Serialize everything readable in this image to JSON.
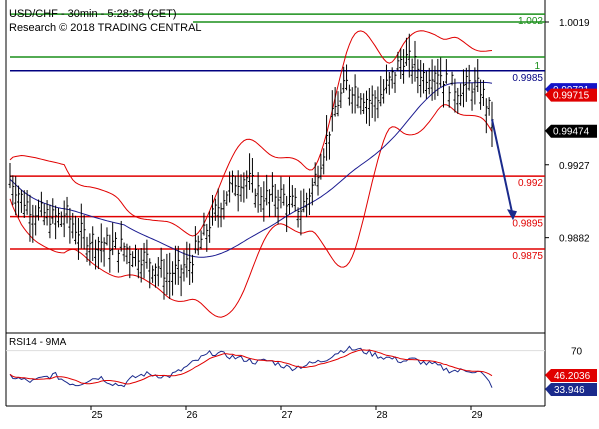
{
  "chart_data": [
    {
      "type": "line",
      "title": "USD/CHF - 30min - 5:28:35 (CET)",
      "subtitle": "Research © 2018 TRADING CENTRAL",
      "x_labels": [
        "25",
        "26",
        "27",
        "28",
        "29"
      ],
      "y_ticks": [
        "1.0019",
        "0.9927",
        "0.9882"
      ],
      "ylim": [
        0.9825,
        1.0025
      ],
      "levels": [
        {
          "value": 1.002,
          "label": "1.002",
          "color": "#1a8f1a"
        },
        {
          "value": 0.9985,
          "label": "0.9985",
          "color": "#000080"
        },
        {
          "value": 0.992,
          "label": "0.992",
          "color": "#e00000"
        },
        {
          "value": 0.9895,
          "label": "0.9895",
          "color": "#e00000"
        },
        {
          "value": 0.9875,
          "label": "0.9875",
          "color": "#e00000"
        }
      ],
      "extra_level_text": "1",
      "price_tags": [
        {
          "value": 0.99731,
          "label": "0.99731",
          "bg": "#1414c8",
          "fg": "#ffffff"
        },
        {
          "value": 0.99715,
          "label": "0.99715",
          "bg": "#e00000",
          "fg": "#ffffff"
        },
        {
          "value": 0.99474,
          "label": "0.99474",
          "bg": "#000000",
          "fg": "#ffffff"
        }
      ],
      "price_path": [
        0.9918,
        0.9905,
        0.9898,
        0.9895,
        0.9892,
        0.9895,
        0.9885,
        0.988,
        0.9878,
        0.9876,
        0.9875,
        0.9872,
        0.9868,
        0.9864,
        0.9858,
        0.986,
        0.9865,
        0.9878,
        0.9892,
        0.9905,
        0.9915,
        0.9918,
        0.991,
        0.9905,
        0.9908,
        0.9902,
        0.9898,
        0.9912,
        0.9935,
        0.996,
        0.9975,
        0.9972,
        0.9965,
        0.9968,
        0.9978,
        0.9992,
        0.9988,
        0.998,
        0.9985,
        0.9976,
        0.9972,
        0.9975,
        0.9972,
        0.9955
      ],
      "projection": {
        "from": 0.9955,
        "to": 0.9894
      },
      "colors": {
        "price": "#000000",
        "bands": "#e00000",
        "moving_average": "#1a1a90",
        "projection": "#1a2a8c"
      }
    },
    {
      "type": "line",
      "title": "RSI14 - 9MA",
      "y_ticks": [
        "70"
      ],
      "ylim": [
        15,
        85
      ],
      "rsi_path": [
        44,
        40,
        38,
        42,
        45,
        38,
        35,
        40,
        43,
        37,
        34,
        42,
        46,
        45,
        43,
        48,
        55,
        62,
        68,
        66,
        63,
        61,
        58,
        60,
        56,
        52,
        54,
        57,
        60,
        67,
        72,
        71,
        68,
        64,
        62,
        59,
        61,
        57,
        55,
        50,
        49,
        50,
        47,
        34
      ],
      "price_tags": [
        {
          "label": "46.2036",
          "bg": "#e00000",
          "fg": "#ffffff"
        },
        {
          "label": "33.946",
          "bg": "#1a2a8c",
          "fg": "#ffffff"
        }
      ],
      "colors": {
        "rsi": "#1a2a8c",
        "ma": "#e00000"
      }
    }
  ]
}
